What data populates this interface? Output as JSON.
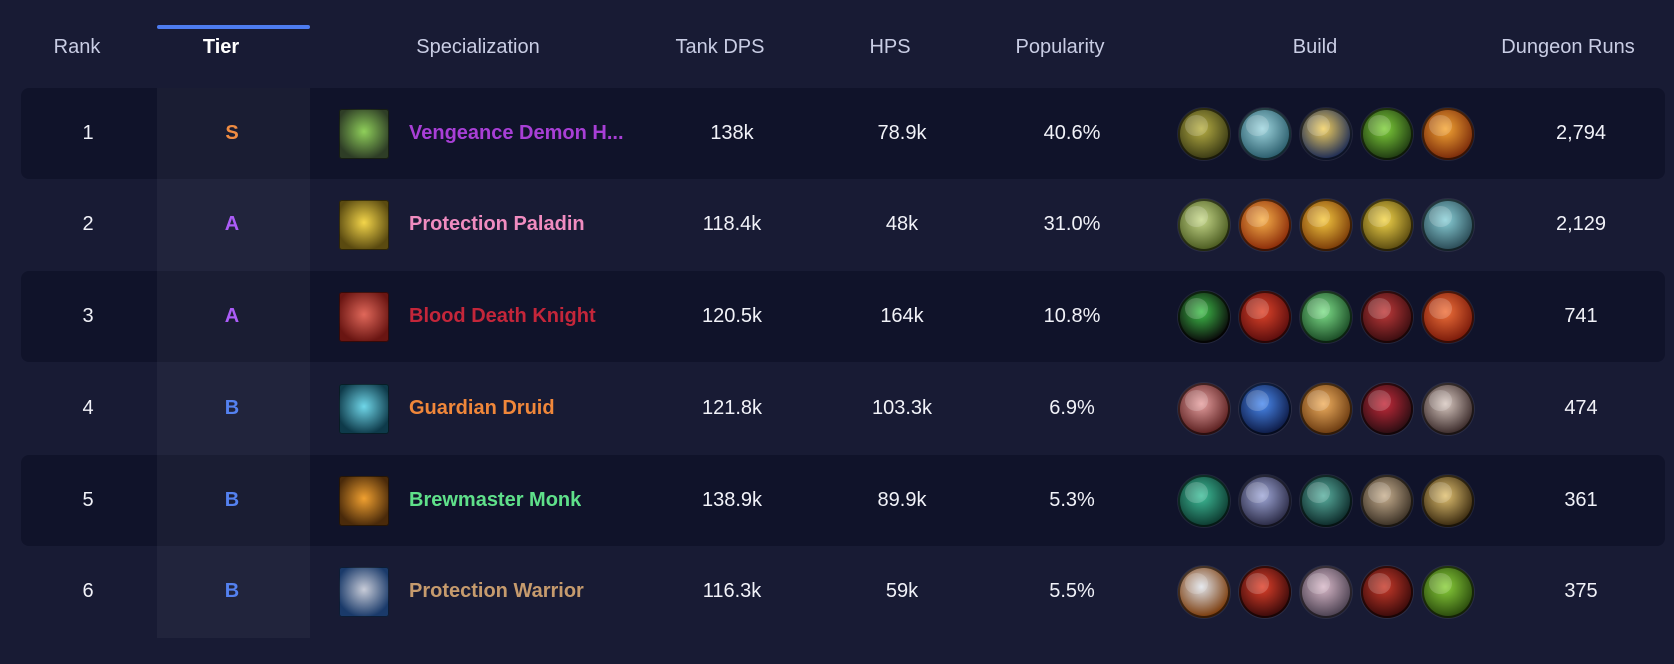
{
  "header": {
    "rank": "Rank",
    "tier": "Tier",
    "specialization": "Specialization",
    "tank_dps": "Tank DPS",
    "hps": "HPS",
    "popularity": "Popularity",
    "build": "Build",
    "dungeon_runs": "Dungeon Runs"
  },
  "rows": [
    {
      "rank": "1",
      "tier": "S",
      "tier_color": "#f0873a",
      "spec": "Vengeance Demon H...",
      "spec_color": "#a83fd6",
      "spec_icon": "vengeance-demon-hunter-icon",
      "spec_icon_colors": [
        "#2e3d26",
        "#8fcf5a"
      ],
      "dps": "138k",
      "hps": "78.9k",
      "popularity": "40.6%",
      "runs": "2,794",
      "build": [
        {
          "icon": "demon-face-talent-icon",
          "c1": "#3a3a14",
          "c2": "#b8b045"
        },
        {
          "icon": "skull-talent-icon",
          "c1": "#2a5c6b",
          "c2": "#9fd6df"
        },
        {
          "icon": "light-burst-talent-icon",
          "c1": "#1b2a55",
          "c2": "#f2d060"
        },
        {
          "icon": "fel-flame-talent-icon",
          "c1": "#1f3a12",
          "c2": "#7fd03a"
        },
        {
          "icon": "fire-spirit-talent-icon",
          "c1": "#7a2a0a",
          "c2": "#f5a634"
        }
      ]
    },
    {
      "rank": "2",
      "tier": "A",
      "tier_color": "#a855f7",
      "spec": "Protection Paladin",
      "spec_color": "#f08cc0",
      "spec_icon": "protection-paladin-icon",
      "spec_icon_colors": [
        "#5a4a10",
        "#f3d54a"
      ],
      "dps": "118.4k",
      "hps": "48k",
      "popularity": "31.0%",
      "runs": "2,129",
      "build": [
        {
          "icon": "lion-face-talent-icon",
          "c1": "#4a5a20",
          "c2": "#c7d98a"
        },
        {
          "icon": "holy-pillar-talent-icon",
          "c1": "#8a2a08",
          "c2": "#f7b04a"
        },
        {
          "icon": "holy-crowd-talent-icon",
          "c1": "#7a3a08",
          "c2": "#f5c840"
        },
        {
          "icon": "golden-helm-talent-icon",
          "c1": "#5a4a10",
          "c2": "#f3d54a"
        },
        {
          "icon": "arcane-shield-talent-icon",
          "c1": "#2a4a55",
          "c2": "#8ad0d8"
        }
      ]
    },
    {
      "rank": "3",
      "tier": "A",
      "tier_color": "#a855f7",
      "spec": "Blood Death Knight",
      "spec_color": "#c4263a",
      "spec_icon": "blood-death-knight-icon",
      "spec_icon_colors": [
        "#6a1512",
        "#e0685a"
      ],
      "dps": "120.5k",
      "hps": "164k",
      "popularity": "10.8%",
      "runs": "741",
      "build": [
        {
          "icon": "void-portal-talent-icon",
          "c1": "#0a0a0a",
          "c2": "#3fbf4a"
        },
        {
          "icon": "red-skull-talent-icon",
          "c1": "#5a0d0d",
          "c2": "#e0442a"
        },
        {
          "icon": "green-skull-talent-icon",
          "c1": "#1a4a25",
          "c2": "#7fe08a"
        },
        {
          "icon": "blood-strike-talent-icon",
          "c1": "#3a0d10",
          "c2": "#c03a3a"
        },
        {
          "icon": "blood-heart-talent-icon",
          "c1": "#7a1a0a",
          "c2": "#f0703a"
        }
      ]
    },
    {
      "rank": "4",
      "tier": "B",
      "tier_color": "#4d7cf0",
      "spec": "Guardian Druid",
      "spec_color": "#f0873a",
      "spec_icon": "guardian-druid-icon",
      "spec_icon_colors": [
        "#0e3a4a",
        "#6fd6e8"
      ],
      "dps": "121.8k",
      "hps": "103.3k",
      "popularity": "6.9%",
      "runs": "474",
      "build": [
        {
          "icon": "claw-rake-talent-icon",
          "c1": "#5a1f1f",
          "c2": "#e6a0a0"
        },
        {
          "icon": "blue-swirl-talent-icon",
          "c1": "#0d1a45",
          "c2": "#4a8af0"
        },
        {
          "icon": "golden-orb-talent-icon",
          "c1": "#6a3a10",
          "c2": "#f0b060"
        },
        {
          "icon": "red-panther-talent-icon",
          "c1": "#2a0d12",
          "c2": "#c42a3a"
        },
        {
          "icon": "grey-claw-talent-icon",
          "c1": "#3a2a2a",
          "c2": "#d8c8c0"
        }
      ]
    },
    {
      "rank": "5",
      "tier": "B",
      "tier_color": "#4d7cf0",
      "spec": "Brewmaster Monk",
      "spec_color": "#5fe08a",
      "spec_icon": "brewmaster-monk-icon",
      "spec_icon_colors": [
        "#4a2a0a",
        "#f0a030"
      ],
      "dps": "138.9k",
      "hps": "89.9k",
      "popularity": "5.3%",
      "runs": "361",
      "build": [
        {
          "icon": "jade-vortex-talent-icon",
          "c1": "#0d3a30",
          "c2": "#3fbf9a"
        },
        {
          "icon": "monk-stance-talent-icon",
          "c1": "#2a2a45",
          "c2": "#a0a8d8"
        },
        {
          "icon": "jade-spirit-talent-icon",
          "c1": "#0d2a2a",
          "c2": "#5ab0a0"
        },
        {
          "icon": "stone-mask-talent-icon",
          "c1": "#3a3025",
          "c2": "#c8b090"
        },
        {
          "icon": "brew-master-talent-icon",
          "c1": "#3a2a10",
          "c2": "#e0c070"
        }
      ]
    },
    {
      "rank": "6",
      "tier": "B",
      "tier_color": "#4d7cf0",
      "spec": "Protection Warrior",
      "spec_color": "#c69b6d",
      "spec_icon": "protection-warrior-icon",
      "spec_icon_colors": [
        "#1a3a6a",
        "#c8ccd8"
      ],
      "dps": "116.3k",
      "hps": "59k",
      "popularity": "5.5%",
      "runs": "375",
      "build": [
        {
          "icon": "silver-shield-talent-icon",
          "c1": "#7a3a0a",
          "c2": "#e0e4ea"
        },
        {
          "icon": "fire-ring-talent-icon",
          "c1": "#3a0a0a",
          "c2": "#e0402a"
        },
        {
          "icon": "battle-cry-talent-icon",
          "c1": "#4a4050",
          "c2": "#d8b8c8"
        },
        {
          "icon": "demon-rage-talent-icon",
          "c1": "#3a0a0a",
          "c2": "#c83a2a"
        },
        {
          "icon": "orc-face-talent-icon",
          "c1": "#2a4a0d",
          "c2": "#8ad03a"
        }
      ]
    }
  ]
}
